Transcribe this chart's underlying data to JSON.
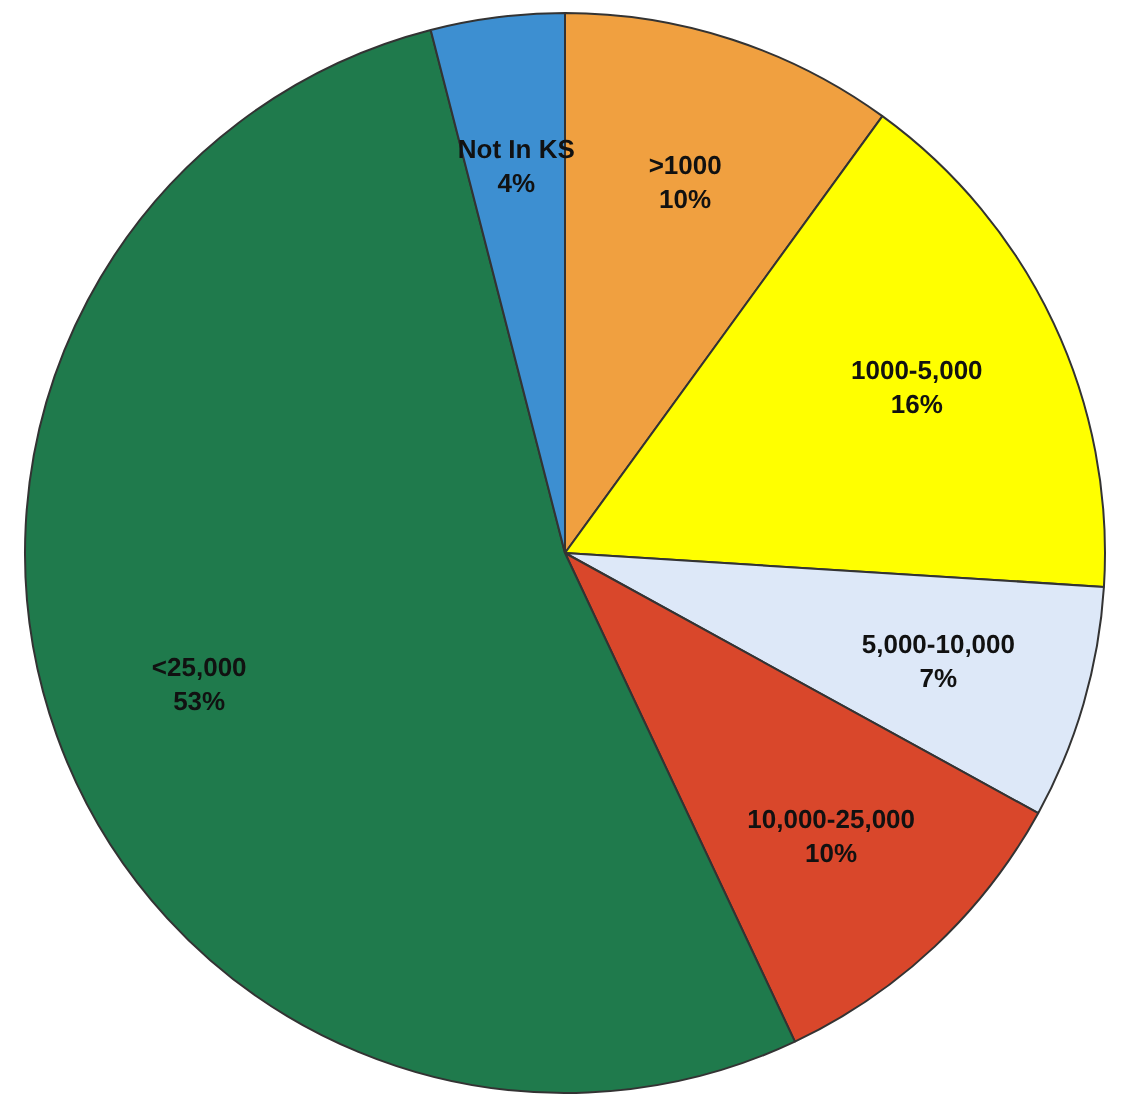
{
  "chart_data": {
    "type": "pie",
    "categories": [
      ">1000",
      "1000-5,000",
      "5,000-10,000",
      "10,000-25,000",
      "<25,000",
      "Not In KS"
    ],
    "values": [
      10,
      16,
      7,
      10,
      53,
      4
    ],
    "value_labels": [
      "10%",
      "16%",
      "7%",
      "10%",
      "53%",
      "4%"
    ],
    "colors": [
      "#f0a040",
      "#ffff00",
      "#dde8f8",
      "#d9472b",
      "#1f7a4c",
      "#3d8fd1"
    ],
    "legend": false
  }
}
